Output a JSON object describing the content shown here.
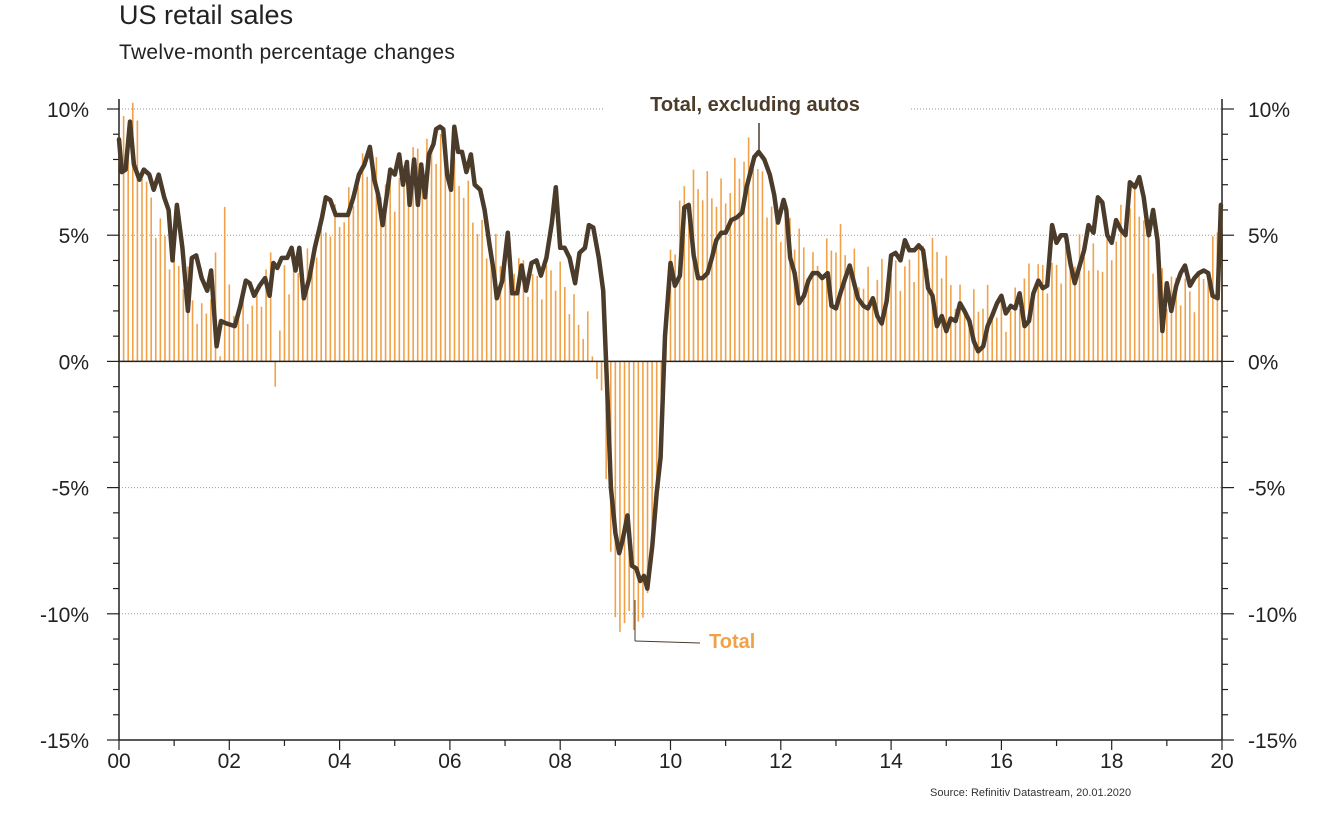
{
  "title": "US retail sales",
  "subtitle": "Twelve-month percentage changes",
  "source": "Source: Refinitiv Datastream, 20.01.2020",
  "colors": {
    "total": "#f0a24a",
    "ex_autos": "#4a3b2a",
    "grid": "#9a9a9a",
    "axis": "#222222"
  },
  "chart_data": {
    "type": "bar",
    "x_start_year": 2000,
    "x_end_year": 2020,
    "xticks": [
      "00",
      "02",
      "04",
      "06",
      "08",
      "10",
      "12",
      "14",
      "16",
      "18",
      "20"
    ],
    "yticks_left": [
      "10%",
      "5%",
      "0%",
      "-5%",
      "-10%",
      "-15%"
    ],
    "yticks_right": [
      "10%",
      "5%",
      "0%",
      "-5%",
      "-10%",
      "-15%"
    ],
    "ylim": [
      -15,
      10
    ],
    "grid": "dotted horizontal at major ticks",
    "annotations": {
      "ex_autos_label": "Total, excluding autos",
      "total_label": "Total"
    },
    "series": [
      {
        "name": "Total",
        "type": "bar",
        "frequency": "monthly",
        "knots": [
          [
            2000.0,
            8.5
          ],
          [
            2000.25,
            9.7
          ],
          [
            2000.5,
            7.0
          ],
          [
            2000.75,
            5.5
          ],
          [
            2001.0,
            3.5
          ],
          [
            2001.25,
            3.0
          ],
          [
            2001.5,
            2.0
          ],
          [
            2001.75,
            3.5
          ],
          [
            2001.85,
            -0.5
          ],
          [
            2001.92,
            6.3
          ],
          [
            2002.0,
            2.0
          ],
          [
            2002.25,
            2.5
          ],
          [
            2002.5,
            2.5
          ],
          [
            2002.75,
            3.5
          ],
          [
            2002.85,
            -1.7
          ],
          [
            2003.0,
            3.5
          ],
          [
            2003.5,
            4.0
          ],
          [
            2004.0,
            6.0
          ],
          [
            2004.5,
            7.5
          ],
          [
            2005.0,
            7.0
          ],
          [
            2005.5,
            8.0
          ],
          [
            2005.8,
            9.0
          ],
          [
            2006.0,
            7.5
          ],
          [
            2006.5,
            5.5
          ],
          [
            2007.0,
            4.0
          ],
          [
            2007.5,
            3.5
          ],
          [
            2008.0,
            3.0
          ],
          [
            2008.5,
            1.5
          ],
          [
            2008.75,
            -1.7
          ],
          [
            2009.0,
            -10.5
          ],
          [
            2009.25,
            -10.0
          ],
          [
            2009.5,
            -10.5
          ],
          [
            2009.75,
            -6.0
          ],
          [
            2010.0,
            4.5
          ],
          [
            2010.25,
            7.0
          ],
          [
            2010.5,
            6.5
          ],
          [
            2011.0,
            7.0
          ],
          [
            2011.5,
            8.0
          ],
          [
            2012.0,
            5.5
          ],
          [
            2012.5,
            4.0
          ],
          [
            2013.0,
            4.5
          ],
          [
            2013.5,
            3.5
          ],
          [
            2014.0,
            3.0
          ],
          [
            2014.5,
            4.5
          ],
          [
            2015.0,
            3.5
          ],
          [
            2015.5,
            2.0
          ],
          [
            2016.0,
            2.0
          ],
          [
            2016.5,
            3.0
          ],
          [
            2017.0,
            4.0
          ],
          [
            2017.5,
            4.0
          ],
          [
            2018.0,
            4.5
          ],
          [
            2018.5,
            6.5
          ],
          [
            2019.0,
            2.5
          ],
          [
            2019.5,
            3.0
          ],
          [
            2019.83,
            4.0
          ],
          [
            2020.0,
            5.8
          ]
        ]
      },
      {
        "name": "Total, excluding autos",
        "type": "line",
        "points": [
          [
            2000.0,
            8.8
          ],
          [
            2000.05,
            7.5
          ],
          [
            2000.12,
            7.6
          ],
          [
            2000.2,
            9.5
          ],
          [
            2000.27,
            7.8
          ],
          [
            2000.37,
            7.2
          ],
          [
            2000.45,
            7.6
          ],
          [
            2000.55,
            7.4
          ],
          [
            2000.63,
            6.8
          ],
          [
            2000.72,
            7.4
          ],
          [
            2000.82,
            6.5
          ],
          [
            2000.9,
            6.0
          ],
          [
            2000.97,
            4.0
          ],
          [
            2001.05,
            6.2
          ],
          [
            2001.15,
            4.5
          ],
          [
            2001.25,
            2.0
          ],
          [
            2001.32,
            4.1
          ],
          [
            2001.4,
            4.2
          ],
          [
            2001.5,
            3.3
          ],
          [
            2001.6,
            2.8
          ],
          [
            2001.67,
            3.6
          ],
          [
            2001.77,
            0.6
          ],
          [
            2001.85,
            1.6
          ],
          [
            2001.95,
            1.5
          ],
          [
            2002.1,
            1.4
          ],
          [
            2002.2,
            2.2
          ],
          [
            2002.3,
            3.2
          ],
          [
            2002.37,
            3.1
          ],
          [
            2002.45,
            2.6
          ],
          [
            2002.55,
            3.0
          ],
          [
            2002.65,
            3.3
          ],
          [
            2002.73,
            2.6
          ],
          [
            2002.8,
            3.9
          ],
          [
            2002.87,
            3.7
          ],
          [
            2002.95,
            4.1
          ],
          [
            2003.05,
            4.1
          ],
          [
            2003.13,
            4.5
          ],
          [
            2003.2,
            3.6
          ],
          [
            2003.27,
            4.5
          ],
          [
            2003.35,
            2.5
          ],
          [
            2003.45,
            3.3
          ],
          [
            2003.55,
            4.5
          ],
          [
            2003.68,
            5.7
          ],
          [
            2003.75,
            6.5
          ],
          [
            2003.83,
            6.4
          ],
          [
            2003.93,
            5.8
          ],
          [
            2004.05,
            5.8
          ],
          [
            2004.15,
            5.8
          ],
          [
            2004.25,
            6.5
          ],
          [
            2004.35,
            7.4
          ],
          [
            2004.45,
            7.8
          ],
          [
            2004.55,
            8.5
          ],
          [
            2004.63,
            7.2
          ],
          [
            2004.7,
            6.6
          ],
          [
            2004.78,
            5.4
          ],
          [
            2004.85,
            6.5
          ],
          [
            2004.92,
            7.6
          ],
          [
            2005.0,
            7.4
          ],
          [
            2005.08,
            8.2
          ],
          [
            2005.15,
            7.0
          ],
          [
            2005.22,
            7.9
          ],
          [
            2005.27,
            6.2
          ],
          [
            2005.35,
            8.0
          ],
          [
            2005.42,
            6.2
          ],
          [
            2005.48,
            7.8
          ],
          [
            2005.55,
            6.5
          ],
          [
            2005.62,
            8.2
          ],
          [
            2005.7,
            8.6
          ],
          [
            2005.75,
            9.2
          ],
          [
            2005.82,
            9.3
          ],
          [
            2005.88,
            9.2
          ],
          [
            2005.95,
            7.4
          ],
          [
            2006.02,
            6.8
          ],
          [
            2006.08,
            9.3
          ],
          [
            2006.15,
            8.3
          ],
          [
            2006.22,
            8.3
          ],
          [
            2006.3,
            7.5
          ],
          [
            2006.38,
            8.2
          ],
          [
            2006.45,
            7.0
          ],
          [
            2006.55,
            6.8
          ],
          [
            2006.63,
            6.0
          ],
          [
            2006.72,
            4.6
          ],
          [
            2006.8,
            3.5
          ],
          [
            2006.85,
            2.5
          ],
          [
            2006.95,
            3.2
          ],
          [
            2007.05,
            5.1
          ],
          [
            2007.13,
            2.7
          ],
          [
            2007.22,
            2.7
          ],
          [
            2007.3,
            3.8
          ],
          [
            2007.38,
            2.8
          ],
          [
            2007.48,
            3.9
          ],
          [
            2007.57,
            4.0
          ],
          [
            2007.65,
            3.4
          ],
          [
            2007.75,
            4.1
          ],
          [
            2007.85,
            5.5
          ],
          [
            2007.92,
            6.9
          ],
          [
            2008.0,
            4.5
          ],
          [
            2008.08,
            4.5
          ],
          [
            2008.17,
            4.1
          ],
          [
            2008.27,
            3.1
          ],
          [
            2008.35,
            4.3
          ],
          [
            2008.45,
            4.5
          ],
          [
            2008.52,
            5.4
          ],
          [
            2008.6,
            5.3
          ],
          [
            2008.7,
            4.1
          ],
          [
            2008.78,
            2.8
          ],
          [
            2008.85,
            -1.0
          ],
          [
            2008.92,
            -5.0
          ],
          [
            2009.0,
            -6.8
          ],
          [
            2009.07,
            -7.6
          ],
          [
            2009.13,
            -7.1
          ],
          [
            2009.22,
            -6.1
          ],
          [
            2009.3,
            -8.1
          ],
          [
            2009.38,
            -8.2
          ],
          [
            2009.45,
            -8.7
          ],
          [
            2009.52,
            -8.5
          ],
          [
            2009.58,
            -9.0
          ],
          [
            2009.67,
            -7.3
          ],
          [
            2009.75,
            -5.2
          ],
          [
            2009.82,
            -3.8
          ],
          [
            2009.9,
            1.0
          ],
          [
            2010.0,
            3.9
          ],
          [
            2010.08,
            3.0
          ],
          [
            2010.17,
            3.4
          ],
          [
            2010.25,
            6.1
          ],
          [
            2010.33,
            6.2
          ],
          [
            2010.42,
            4.2
          ],
          [
            2010.5,
            3.3
          ],
          [
            2010.58,
            3.3
          ],
          [
            2010.67,
            3.5
          ],
          [
            2010.75,
            4.1
          ],
          [
            2010.83,
            4.8
          ],
          [
            2010.92,
            5.1
          ],
          [
            2011.0,
            5.1
          ],
          [
            2011.1,
            5.6
          ],
          [
            2011.2,
            5.7
          ],
          [
            2011.3,
            5.9
          ],
          [
            2011.38,
            6.9
          ],
          [
            2011.45,
            7.5
          ],
          [
            2011.52,
            8.1
          ],
          [
            2011.6,
            8.3
          ],
          [
            2011.7,
            8.0
          ],
          [
            2011.8,
            7.4
          ],
          [
            2011.88,
            6.6
          ],
          [
            2011.95,
            5.5
          ],
          [
            2012.05,
            6.4
          ],
          [
            2012.1,
            6.0
          ],
          [
            2012.17,
            4.1
          ],
          [
            2012.25,
            3.5
          ],
          [
            2012.33,
            2.3
          ],
          [
            2012.42,
            2.6
          ],
          [
            2012.5,
            3.2
          ],
          [
            2012.58,
            3.5
          ],
          [
            2012.67,
            3.5
          ],
          [
            2012.75,
            3.3
          ],
          [
            2012.85,
            3.5
          ],
          [
            2012.92,
            2.2
          ],
          [
            2013.0,
            2.1
          ],
          [
            2013.08,
            2.7
          ],
          [
            2013.17,
            3.3
          ],
          [
            2013.25,
            3.8
          ],
          [
            2013.33,
            3.1
          ],
          [
            2013.4,
            2.5
          ],
          [
            2013.5,
            2.2
          ],
          [
            2013.58,
            2.1
          ],
          [
            2013.67,
            2.5
          ],
          [
            2013.75,
            1.8
          ],
          [
            2013.83,
            1.5
          ],
          [
            2013.92,
            2.4
          ],
          [
            2014.0,
            4.2
          ],
          [
            2014.08,
            4.3
          ],
          [
            2014.17,
            4.0
          ],
          [
            2014.25,
            4.8
          ],
          [
            2014.33,
            4.4
          ],
          [
            2014.42,
            4.4
          ],
          [
            2014.5,
            4.6
          ],
          [
            2014.58,
            4.4
          ],
          [
            2014.67,
            2.9
          ],
          [
            2014.75,
            2.6
          ],
          [
            2014.83,
            1.4
          ],
          [
            2014.92,
            1.8
          ],
          [
            2015.0,
            1.2
          ],
          [
            2015.08,
            1.7
          ],
          [
            2015.17,
            1.6
          ],
          [
            2015.25,
            2.3
          ],
          [
            2015.33,
            2.0
          ],
          [
            2015.42,
            1.6
          ],
          [
            2015.5,
            0.8
          ],
          [
            2015.58,
            0.4
          ],
          [
            2015.67,
            0.6
          ],
          [
            2015.75,
            1.4
          ],
          [
            2015.83,
            1.8
          ],
          [
            2015.92,
            2.3
          ],
          [
            2016.0,
            2.6
          ],
          [
            2016.08,
            1.9
          ],
          [
            2016.17,
            2.2
          ],
          [
            2016.25,
            2.1
          ],
          [
            2016.33,
            2.7
          ],
          [
            2016.42,
            1.4
          ],
          [
            2016.5,
            1.6
          ],
          [
            2016.58,
            2.7
          ],
          [
            2016.67,
            3.2
          ],
          [
            2016.75,
            2.9
          ],
          [
            2016.83,
            3.0
          ],
          [
            2016.92,
            5.4
          ],
          [
            2017.0,
            4.7
          ],
          [
            2017.08,
            5.0
          ],
          [
            2017.17,
            5.0
          ],
          [
            2017.25,
            3.9
          ],
          [
            2017.33,
            3.1
          ],
          [
            2017.42,
            3.8
          ],
          [
            2017.5,
            4.4
          ],
          [
            2017.58,
            5.4
          ],
          [
            2017.67,
            5.1
          ],
          [
            2017.75,
            6.5
          ],
          [
            2017.83,
            6.3
          ],
          [
            2017.92,
            5.0
          ],
          [
            2018.0,
            4.7
          ],
          [
            2018.08,
            5.6
          ],
          [
            2018.17,
            5.2
          ],
          [
            2018.25,
            5.0
          ],
          [
            2018.33,
            7.1
          ],
          [
            2018.42,
            6.9
          ],
          [
            2018.5,
            7.3
          ],
          [
            2018.58,
            6.5
          ],
          [
            2018.67,
            5.0
          ],
          [
            2018.75,
            6.0
          ],
          [
            2018.83,
            4.8
          ],
          [
            2018.92,
            1.2
          ],
          [
            2019.0,
            3.1
          ],
          [
            2019.08,
            2.0
          ],
          [
            2019.17,
            3.0
          ],
          [
            2019.25,
            3.5
          ],
          [
            2019.33,
            3.8
          ],
          [
            2019.42,
            3.0
          ],
          [
            2019.5,
            3.3
          ],
          [
            2019.58,
            3.5
          ],
          [
            2019.67,
            3.6
          ],
          [
            2019.75,
            3.5
          ],
          [
            2019.83,
            2.6
          ],
          [
            2019.92,
            2.5
          ],
          [
            2019.98,
            6.2
          ]
        ]
      }
    ]
  }
}
